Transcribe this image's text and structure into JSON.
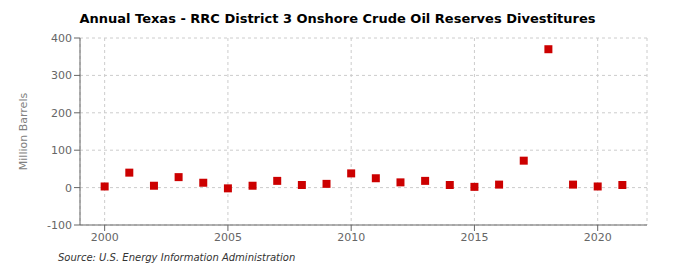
{
  "chart_data": {
    "type": "scatter",
    "title": "Annual Texas - RRC District 3 Onshore Crude Oil Reserves Divestitures",
    "ylabel": "Million Barrels",
    "annotations": [
      "Source: U.S. Energy Information Administration"
    ],
    "x": [
      2000,
      2001,
      2002,
      2003,
      2004,
      2005,
      2006,
      2007,
      2008,
      2009,
      2010,
      2011,
      2012,
      2013,
      2014,
      2015,
      2016,
      2017,
      2018,
      2019,
      2020,
      2021
    ],
    "values": [
      3,
      40,
      5,
      28,
      13,
      -2,
      5,
      18,
      7,
      10,
      38,
      25,
      14,
      18,
      7,
      2,
      8,
      72,
      370,
      8,
      3,
      7
    ],
    "color": "#cc0000",
    "marker": "square",
    "xlim": [
      1999,
      2022
    ],
    "xticks": [
      2000,
      2005,
      2010,
      2015,
      2020
    ],
    "ylim": [
      -100,
      400
    ],
    "yticks": [
      -100,
      0,
      100,
      200,
      300,
      400
    ],
    "grid": true
  }
}
